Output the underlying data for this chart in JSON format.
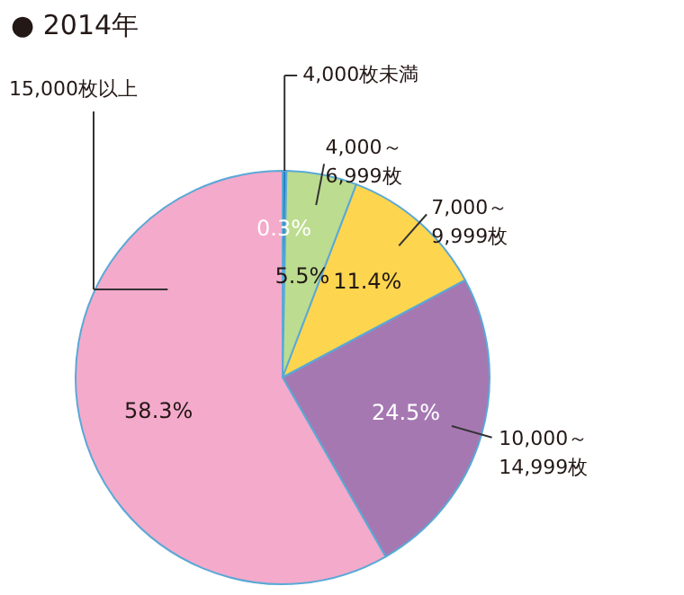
{
  "chart_data": {
    "type": "pie",
    "title": "● 2014年",
    "categories": [
      "4,000枚未満",
      "4,000～6,999枚",
      "7,000～9,999枚",
      "10,000～14,999枚",
      "15,000枚以上"
    ],
    "values": [
      0.3,
      5.5,
      11.4,
      24.5,
      58.3
    ],
    "colors": [
      "#2a7fc4",
      "#bcdc8f",
      "#fed54f",
      "#a678b2",
      "#f4aacb"
    ],
    "value_labels": [
      "0.3%",
      "5.5%",
      "11.4%",
      "24.5%",
      "58.3%"
    ]
  }
}
